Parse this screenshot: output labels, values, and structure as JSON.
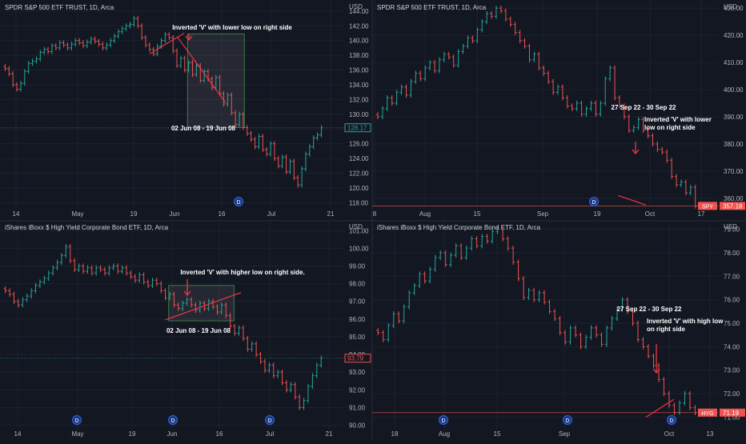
{
  "colors": {
    "background": "#131722",
    "grid": "#1e222d",
    "axis_text": "#b2b5be",
    "title_text": "#d1d4dc",
    "up": "#26a69a",
    "down": "#ef5350",
    "annotation": "#f23645",
    "highlight_fill": "rgba(120,123,134,0.18)",
    "highlight_stroke": "#3d7a4a"
  },
  "panels": {
    "spy_2008": {
      "title": "SPDR S&P 500 ETF TRUST, 1D, Arca",
      "currency": "USD",
      "annotation": "Inverted 'V' with lower low on right side",
      "date_range": "02 Jun 08 - 19 Jun 08",
      "price_label": "128.17",
      "x_labels": [
        "14",
        "May",
        "19",
        "Jun",
        "16",
        "Jul",
        "21"
      ],
      "dividend_marker": "D"
    },
    "spy_2022": {
      "title": "SPDR S&P 500 ETF TRUST, 1D, Arca",
      "currency": "USD",
      "annotation": "Inverted 'V' with lower low on right side",
      "date_range": "27 Sep 22 - 30 Sep 22",
      "ticker": "SPY",
      "price_label": "357.18",
      "x_labels": [
        "8",
        "Aug",
        "15",
        "Sep",
        "19",
        "Oct",
        "17"
      ],
      "dividend_marker": "D"
    },
    "hyg_2008": {
      "title": "iShares iBoxx $ High Yield Corporate Bond ETF, 1D, Arca",
      "currency": "USD",
      "annotation": "Inverted 'V' with higher low on right side.",
      "date_range": "02 Jun 08 - 19 Jun 08",
      "price_label": "93.79",
      "x_labels": [
        "14",
        "May",
        "19",
        "Jun",
        "16",
        "Jul",
        "21"
      ],
      "dividend_marker": "D"
    },
    "hyg_2022": {
      "title": "iShares iBoxx $ High Yield Corporate Bond ETF, 1D, Arca",
      "currency": "USD",
      "annotation": "Inverted 'V' with high low on right side",
      "date_range": "27 Sep 22 - 30 Sep 22",
      "ticker": "HYG",
      "price_label": "71.19",
      "x_labels": [
        "18",
        "Aug",
        "15",
        "Sep",
        "Oct",
        "13"
      ],
      "dividend_marker": "D"
    }
  },
  "chart_data": [
    {
      "type": "ohlc",
      "title": "SPDR S&P 500 ETF TRUST, 1D, Arca",
      "y_ticks": [
        118,
        120,
        122,
        124,
        126,
        128,
        130,
        132,
        134,
        136,
        138,
        140,
        142,
        144
      ],
      "ylim": [
        117.5,
        145.5
      ],
      "last_price": 128.17,
      "closes": [
        136.2,
        135.5,
        134.0,
        133.4,
        134.2,
        135.8,
        136.9,
        137.2,
        137.5,
        138.4,
        138.8,
        138.5,
        139.3,
        139.0,
        139.7,
        139.4,
        139.0,
        139.5,
        140.0,
        139.7,
        139.3,
        139.8,
        140.2,
        139.9,
        139.5,
        139.0,
        139.4,
        140.0,
        140.6,
        141.2,
        141.6,
        142.0,
        142.2,
        143.0,
        142.0,
        140.4,
        139.4,
        138.8,
        138.2,
        139.2,
        140.0,
        140.8,
        140.4,
        138.6,
        136.6,
        137.6,
        136.0,
        137.0,
        135.4,
        136.6,
        134.6,
        135.8,
        134.8,
        133.6,
        135.0,
        132.8,
        131.4,
        132.6,
        130.2,
        128.6,
        130.0,
        128.2,
        127.4,
        126.6,
        125.6,
        127.0,
        125.2,
        124.6,
        126.0,
        124.0,
        123.0,
        124.2,
        122.2,
        123.6,
        121.4,
        120.4,
        122.6,
        124.6,
        125.6,
        126.8,
        127.2,
        128.17
      ],
      "x_labels": [
        "14",
        "May",
        "19",
        "Jun",
        "16",
        "Jul",
        "21"
      ]
    },
    {
      "type": "ohlc",
      "title": "SPDR S&P 500 ETF TRUST, 1D, Arca",
      "y_ticks": [
        360,
        370,
        380,
        390,
        400,
        410,
        420,
        430
      ],
      "ylim": [
        357,
        433
      ],
      "last_price": 357.18,
      "closes": [
        390,
        393,
        397,
        395,
        399,
        401,
        398,
        403,
        406,
        404,
        408,
        410,
        407,
        411,
        413,
        412,
        409,
        414,
        416,
        419,
        418,
        422,
        425,
        428,
        427,
        430,
        429,
        426,
        424,
        421,
        418,
        416,
        411,
        413,
        408,
        406,
        403,
        399,
        401,
        397,
        394,
        393,
        395,
        391,
        393,
        395,
        391,
        395,
        404,
        408,
        397,
        394,
        390,
        385,
        386,
        389,
        385,
        383,
        380,
        378,
        377,
        374,
        368,
        365,
        366,
        362,
        364,
        357.18
      ],
      "x_labels": [
        "8",
        "Aug",
        "15",
        "Sep",
        "19",
        "Oct",
        "17"
      ]
    },
    {
      "type": "ohlc",
      "title": "iShares iBoxx $ High Yield Corporate Bond ETF, 1D, Arca",
      "y_ticks": [
        90,
        91,
        92,
        93,
        94,
        95,
        96,
        97,
        98,
        99,
        100,
        101
      ],
      "ylim": [
        89.8,
        101.6
      ],
      "last_price": 93.79,
      "closes": [
        97.6,
        97.4,
        97.0,
        96.8,
        97.1,
        97.3,
        97.6,
        97.9,
        98.1,
        98.3,
        98.6,
        98.9,
        99.2,
        99.6,
        100.1,
        99.3,
        98.8,
        99.0,
        98.7,
        98.9,
        98.6,
        98.9,
        98.8,
        98.6,
        98.9,
        99.0,
        98.7,
        98.9,
        98.6,
        98.4,
        98.2,
        98.5,
        98.1,
        97.9,
        98.2,
        98.0,
        97.6,
        97.2,
        97.4,
        96.8,
        96.6,
        96.9,
        97.1,
        96.8,
        96.5,
        96.9,
        96.6,
        97.0,
        96.7,
        96.4,
        96.8,
        96.2,
        95.6,
        95.2,
        95.5,
        94.9,
        94.3,
        94.6,
        94.0,
        93.6,
        93.1,
        93.4,
        92.8,
        93.0,
        92.4,
        92.0,
        92.3,
        91.6,
        91.0,
        91.4,
        92.2,
        92.8,
        93.4,
        93.79
      ],
      "x_labels": [
        "14",
        "May",
        "19",
        "Jun",
        "16",
        "Jul",
        "21"
      ]
    },
    {
      "type": "ohlc",
      "title": "iShares iBoxx $ High Yield Corporate Bond ETF, 1D, Arca",
      "y_ticks": [
        71,
        72,
        73,
        74,
        75,
        76,
        77,
        78,
        79
      ],
      "ylim": [
        70.5,
        79.4
      ],
      "last_price": 71.19,
      "closes": [
        74.6,
        74.3,
        74.9,
        75.4,
        75.1,
        75.7,
        76.3,
        76.6,
        77.1,
        76.8,
        77.3,
        77.8,
        78.0,
        77.5,
        77.9,
        78.3,
        77.8,
        78.2,
        78.6,
        78.3,
        78.7,
        78.5,
        78.9,
        79.0,
        78.6,
        78.2,
        77.6,
        76.9,
        76.1,
        76.4,
        76.0,
        76.3,
        75.9,
        75.5,
        75.2,
        74.6,
        74.2,
        74.8,
        74.5,
        74.0,
        74.4,
        74.8,
        74.5,
        74.1,
        74.8,
        75.2,
        75.6,
        76.0,
        75.5,
        75.0,
        74.3,
        74.0,
        73.6,
        73.2,
        72.6,
        72.0,
        71.5,
        71.2,
        71.6,
        72.0,
        71.4,
        71.19
      ],
      "x_labels": [
        "18",
        "Aug",
        "15",
        "Sep",
        "Oct",
        "13"
      ]
    }
  ]
}
